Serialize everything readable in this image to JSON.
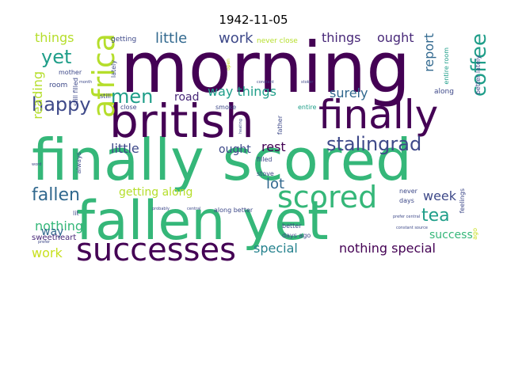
{
  "title": "1942-11-05",
  "colors": {
    "dark_purple": "#440154",
    "purple": "#482878",
    "indigo": "#3e4989",
    "blue": "#31688e",
    "teal": "#26828e",
    "cyan_green": "#1f9e89",
    "green": "#35b779",
    "bright_green": "#6ece58",
    "lime": "#b5de2b",
    "yellow": "#c8e020"
  },
  "words": [
    {
      "text": "morning",
      "size": 88,
      "color": "dark_purple",
      "dir": "h"
    },
    {
      "text": "finally scored",
      "size": 72,
      "color": "green",
      "dir": "h"
    },
    {
      "text": "fallen yet",
      "size": 68,
      "color": "green",
      "dir": "h"
    },
    {
      "text": "british",
      "size": 58,
      "color": "dark_purple",
      "dir": "h"
    },
    {
      "text": "finally",
      "size": 50,
      "color": "dark_purple",
      "dir": "h"
    },
    {
      "text": "successes",
      "size": 40,
      "color": "dark_purple",
      "dir": "h"
    },
    {
      "text": "scored",
      "size": 38,
      "color": "green",
      "dir": "h"
    },
    {
      "text": "africa",
      "size": 38,
      "color": "lime",
      "dir": "v"
    },
    {
      "text": "coffee",
      "size": 26,
      "color": "cyan_green",
      "dir": "v"
    },
    {
      "text": "stalingrad",
      "size": 24,
      "color": "indigo",
      "dir": "h"
    },
    {
      "text": "happy",
      "size": 24,
      "color": "indigo",
      "dir": "h"
    },
    {
      "text": "yet",
      "size": 24,
      "color": "cyan_green",
      "dir": "h"
    },
    {
      "text": "men",
      "size": 24,
      "color": "cyan_green",
      "dir": "h"
    },
    {
      "text": "fallen",
      "size": 22,
      "color": "blue",
      "dir": "h"
    },
    {
      "text": "tea",
      "size": 22,
      "color": "cyan_green",
      "dir": "h"
    },
    {
      "text": "little",
      "size": 18,
      "color": "blue",
      "dir": "h"
    },
    {
      "text": "work",
      "size": 18,
      "color": "indigo",
      "dir": "h"
    },
    {
      "text": "things",
      "size": 16,
      "color": "lime",
      "dir": "h"
    },
    {
      "text": "things",
      "size": 16,
      "color": "purple",
      "dir": "h"
    },
    {
      "text": "ought",
      "size": 16,
      "color": "purple",
      "dir": "h"
    },
    {
      "text": "report",
      "size": 16,
      "color": "blue",
      "dir": "v"
    },
    {
      "text": "reading",
      "size": 16,
      "color": "lime",
      "dir": "v"
    },
    {
      "text": "way things",
      "size": 16,
      "color": "cyan_green",
      "dir": "h"
    },
    {
      "text": "surely",
      "size": 16,
      "color": "blue",
      "dir": "h"
    },
    {
      "text": "road",
      "size": 14,
      "color": "purple",
      "dir": "h"
    },
    {
      "text": "little",
      "size": 16,
      "color": "indigo",
      "dir": "h"
    },
    {
      "text": "ought",
      "size": 14,
      "color": "indigo",
      "dir": "h"
    },
    {
      "text": "rest",
      "size": 16,
      "color": "dark_purple",
      "dir": "h"
    },
    {
      "text": "lot",
      "size": 18,
      "color": "blue",
      "dir": "h"
    },
    {
      "text": "week",
      "size": 16,
      "color": "indigo",
      "dir": "h"
    },
    {
      "text": "getting along",
      "size": 14,
      "color": "lime",
      "dir": "h"
    },
    {
      "text": "nothing",
      "size": 16,
      "color": "green",
      "dir": "h"
    },
    {
      "text": "way",
      "size": 14,
      "color": "blue",
      "dir": "h"
    },
    {
      "text": "work",
      "size": 16,
      "color": "yellow",
      "dir": "h"
    },
    {
      "text": "special",
      "size": 16,
      "color": "teal",
      "dir": "h"
    },
    {
      "text": "nothing special",
      "size": 16,
      "color": "dark_purple",
      "dir": "h"
    },
    {
      "text": "success",
      "size": 14,
      "color": "green",
      "dir": "h"
    },
    {
      "text": "sweetheart",
      "size": 10,
      "color": "purple",
      "dir": "h"
    },
    {
      "text": "getting",
      "size": 9,
      "color": "indigo",
      "dir": "h"
    },
    {
      "text": "never close",
      "size": 9,
      "color": "lime",
      "dir": "h"
    },
    {
      "text": "entire room",
      "size": 8,
      "color": "cyan_green",
      "dir": "v"
    },
    {
      "text": "along",
      "size": 9,
      "color": "indigo",
      "dir": "h"
    },
    {
      "text": "better lately",
      "size": 8,
      "color": "indigo",
      "dir": "v"
    },
    {
      "text": "room",
      "size": 9,
      "color": "indigo",
      "dir": "h"
    },
    {
      "text": "mother",
      "size": 8,
      "color": "indigo",
      "dir": "h"
    },
    {
      "text": "still",
      "size": 8,
      "color": "indigo",
      "dir": "h"
    },
    {
      "text": "still filled",
      "size": 8,
      "color": "indigo",
      "dir": "v"
    },
    {
      "text": "lately",
      "size": 8,
      "color": "indigo",
      "dir": "v"
    },
    {
      "text": "close",
      "size": 8,
      "color": "indigo",
      "dir": "h"
    },
    {
      "text": "smoke",
      "size": 8,
      "color": "indigo",
      "dir": "h"
    },
    {
      "text": "father",
      "size": 8,
      "color": "indigo",
      "dir": "v"
    },
    {
      "text": "filled",
      "size": 8,
      "color": "indigo",
      "dir": "h"
    },
    {
      "text": "stove",
      "size": 8,
      "color": "indigo",
      "dir": "h"
    },
    {
      "text": "entire",
      "size": 8,
      "color": "cyan_green",
      "dir": "h"
    },
    {
      "text": "always",
      "size": 8,
      "color": "indigo",
      "dir": "v"
    },
    {
      "text": "never",
      "size": 8,
      "color": "indigo",
      "dir": "h"
    },
    {
      "text": "days",
      "size": 8,
      "color": "indigo",
      "dir": "h"
    },
    {
      "text": "along better",
      "size": 8,
      "color": "indigo",
      "dir": "h"
    },
    {
      "text": "better",
      "size": 8,
      "color": "indigo",
      "dir": "h"
    },
    {
      "text": "days ago",
      "size": 8,
      "color": "indigo",
      "dir": "h"
    },
    {
      "text": "feelings",
      "size": 8,
      "color": "indigo",
      "dir": "v"
    },
    {
      "text": "ago",
      "size": 8,
      "color": "yellow",
      "dir": "v"
    },
    {
      "text": "lit",
      "size": 8,
      "color": "indigo",
      "dir": "h"
    },
    {
      "text": "open",
      "size": 6,
      "color": "yellow",
      "dir": "v"
    },
    {
      "text": "constant",
      "size": 5,
      "color": "indigo",
      "dir": "h"
    },
    {
      "text": "probably",
      "size": 5,
      "color": "indigo",
      "dir": "h"
    },
    {
      "text": "central",
      "size": 5,
      "color": "indigo",
      "dir": "h"
    },
    {
      "text": "prefer central",
      "size": 5,
      "color": "indigo",
      "dir": "h"
    },
    {
      "text": "constant source",
      "size": 5,
      "color": "indigo",
      "dir": "h"
    },
    {
      "text": "prefer",
      "size": 5,
      "color": "indigo",
      "dir": "h"
    },
    {
      "text": "word",
      "size": 5,
      "color": "indigo",
      "dir": "h"
    },
    {
      "text": "heating",
      "size": 5,
      "color": "indigo",
      "dir": "v"
    },
    {
      "text": "stoker",
      "size": 5,
      "color": "indigo",
      "dir": "h"
    },
    {
      "text": "month",
      "size": 5,
      "color": "indigo",
      "dir": "h"
    }
  ]
}
